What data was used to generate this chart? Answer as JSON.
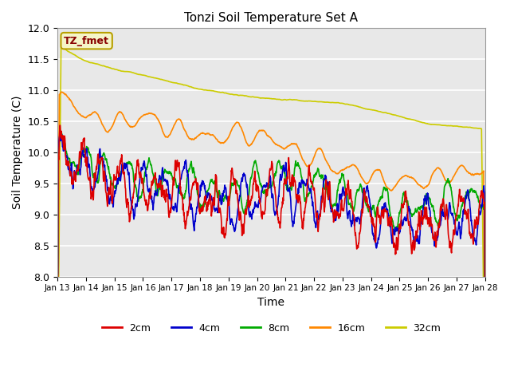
{
  "title": "Tonzi Soil Temperature Set A",
  "xlabel": "Time",
  "ylabel": "Soil Temperature (C)",
  "ylim": [
    8.0,
    12.0
  ],
  "xlim": [
    0,
    360
  ],
  "background_color": "#e8e8e8",
  "legend_label": "TZ_fmet",
  "legend_box_color": "#f5f5c8",
  "legend_box_border": "#b8a000",
  "series": {
    "2cm": {
      "color": "#dd0000",
      "lw": 1.2
    },
    "4cm": {
      "color": "#0000cc",
      "lw": 1.2
    },
    "8cm": {
      "color": "#00aa00",
      "lw": 1.2
    },
    "16cm": {
      "color": "#ff8800",
      "lw": 1.2
    },
    "32cm": {
      "color": "#cccc00",
      "lw": 1.2
    }
  },
  "xtick_labels": [
    "Jan 13",
    "Jan 14",
    "Jan 15",
    "Jan 16",
    "Jan 17",
    "Jan 18",
    "Jan 19",
    "Jan 20",
    "Jan 21",
    "Jan 22",
    "Jan 23",
    "Jan 24",
    "Jan 25",
    "Jan 26",
    "Jan 27",
    "Jan 28"
  ],
  "xtick_positions": [
    0,
    24,
    48,
    72,
    96,
    120,
    144,
    168,
    192,
    216,
    240,
    264,
    288,
    312,
    336,
    360
  ],
  "ytick_labels": [
    "8.0",
    "8.5",
    "9.0",
    "9.5",
    "10.0",
    "10.5",
    "11.0",
    "11.5",
    "12.0"
  ],
  "ytick_values": [
    8.0,
    8.5,
    9.0,
    9.5,
    10.0,
    10.5,
    11.0,
    11.5,
    12.0
  ]
}
